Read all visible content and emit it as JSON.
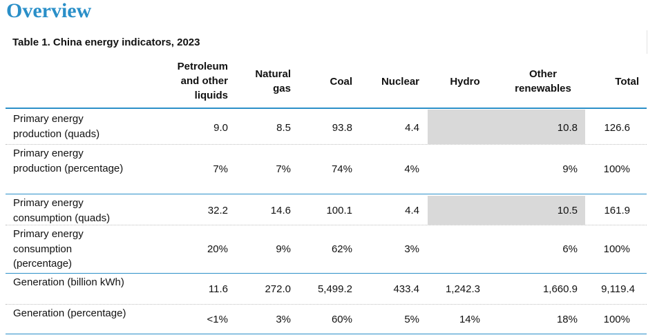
{
  "heading": "Overview",
  "caption": "Table 1. China energy indicators, 2023",
  "columns": {
    "petroleum": [
      "Petroleum",
      "and other",
      "liquids"
    ],
    "natural_gas": [
      "Natural",
      "gas"
    ],
    "coal": "Coal",
    "nuclear": "Nuclear",
    "hydro": "Hydro",
    "other_renewables": [
      "Other",
      "renewables"
    ],
    "total": "Total"
  },
  "rows": [
    {
      "label": [
        "Primary energy",
        "production (quads)"
      ],
      "petroleum": "9.0",
      "natural_gas": "8.5",
      "coal": "93.8",
      "nuclear": "4.4",
      "hydro": "",
      "other_renewables": "10.8",
      "total": "126.6"
    },
    {
      "label": [
        "Primary energy",
        "production (percentage)"
      ],
      "petroleum": "7%",
      "natural_gas": "7%",
      "coal": "74%",
      "nuclear": "4%",
      "hydro": "",
      "other_renewables": "9%",
      "total": "100%"
    },
    {
      "label": [
        "Primary energy",
        "consumption (quads)"
      ],
      "petroleum": "32.2",
      "natural_gas": "14.6",
      "coal": "100.1",
      "nuclear": "4.4",
      "hydro": "",
      "other_renewables": "10.5",
      "total": "161.9"
    },
    {
      "label": [
        "Primary energy",
        "consumption",
        "(percentage)"
      ],
      "petroleum": "20%",
      "natural_gas": "9%",
      "coal": "62%",
      "nuclear": "3%",
      "hydro": "",
      "other_renewables": "6%",
      "total": "100%"
    },
    {
      "label": [
        "Generation (billion kWh)"
      ],
      "petroleum": "11.6",
      "natural_gas": "272.0",
      "coal": "5,499.2",
      "nuclear": "433.4",
      "hydro": "1,242.3",
      "other_renewables": "1,660.9",
      "total": "9,119.4"
    },
    {
      "label": [
        "Generation (percentage)"
      ],
      "petroleum": "<1%",
      "natural_gas": "3%",
      "coal": "60%",
      "nuclear": "5%",
      "hydro": "14%",
      "other_renewables": "18%",
      "total": "100%"
    }
  ],
  "colors": {
    "heading": "#2a8fc8",
    "rule": "#2a8fc8",
    "merged_cell_shade": "#d9d9d9"
  }
}
